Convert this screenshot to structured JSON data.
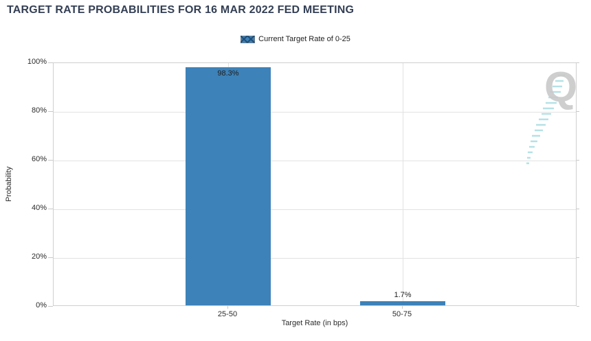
{
  "title": "TARGET RATE PROBABILITIES FOR 16 MAR 2022 FED MEETING",
  "legend": {
    "label": "Current Target Rate of 0-25"
  },
  "watermark_letter": "Q",
  "chart_data": {
    "type": "bar",
    "title": "TARGET RATE PROBABILITIES FOR 16 MAR 2022 FED MEETING",
    "categories": [
      "25-50",
      "50-75"
    ],
    "values": [
      98.3,
      1.7
    ],
    "value_labels": [
      "98.3%",
      "1.7%"
    ],
    "xlabel": "Target Rate (in bps)",
    "ylabel": "Probability",
    "ylim": [
      0,
      100
    ],
    "yticks": [
      "0%",
      "20%",
      "40%",
      "60%",
      "80%",
      "100%"
    ],
    "grid": true,
    "legend_entries": [
      "Current Target Rate of 0-25"
    ],
    "legend_position": "top-center",
    "bar_color": "#3d82b8"
  },
  "colors": {
    "bar": "#3d82b8",
    "title_text": "#333f54",
    "axis_text": "#2b2b2b",
    "gridline": "#e2e2e2",
    "plot_border": "#cfcfcf",
    "legend_hatch": "#1f4e79",
    "watermark_letter": "#c9c9c9",
    "watermark_dashes": "#a9dce2"
  }
}
